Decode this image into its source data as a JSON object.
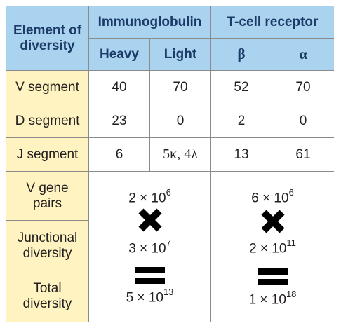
{
  "header": {
    "corner_label_line1": "Element of",
    "corner_label_line2": "diversity",
    "group1": "Immunoglobulin",
    "group2": "T-cell receptor",
    "sub1": "Heavy",
    "sub2": "Light",
    "sub3": "β",
    "sub4": "α"
  },
  "rows": [
    {
      "label": "V segment",
      "values": [
        "40",
        "70",
        "52",
        "70"
      ]
    },
    {
      "label": "D segment",
      "values": [
        "23",
        "0",
        "2",
        "0"
      ]
    },
    {
      "label": "J segment",
      "values": [
        "6",
        "5κ, 4λ",
        "13",
        "61"
      ]
    }
  ],
  "summary": {
    "v_pairs_line1": "V gene",
    "v_pairs_line2": "pairs",
    "junctional_line1": "Junctional",
    "junctional_line2": "diversity",
    "total_line1": "Total",
    "total_line2": "diversity",
    "ig": {
      "v_pairs_base": "2 × 10",
      "v_pairs_exp": "6",
      "junctional_base": "3 × 10",
      "junctional_exp": "7",
      "total_base": "5 × 10",
      "total_exp": "13"
    },
    "tcr": {
      "v_pairs_base": "6 × 10",
      "v_pairs_exp": "6",
      "junctional_base": "2 × 10",
      "junctional_exp": "11",
      "total_base": "1 × 10",
      "total_exp": "18"
    }
  },
  "colors": {
    "header_bg": "#a9d3ee",
    "header_text": "#1b3a67",
    "label_bg": "#fff4c1",
    "border": "#8a8a8a"
  },
  "icons": [
    "multiply-icon",
    "equals-icon"
  ]
}
